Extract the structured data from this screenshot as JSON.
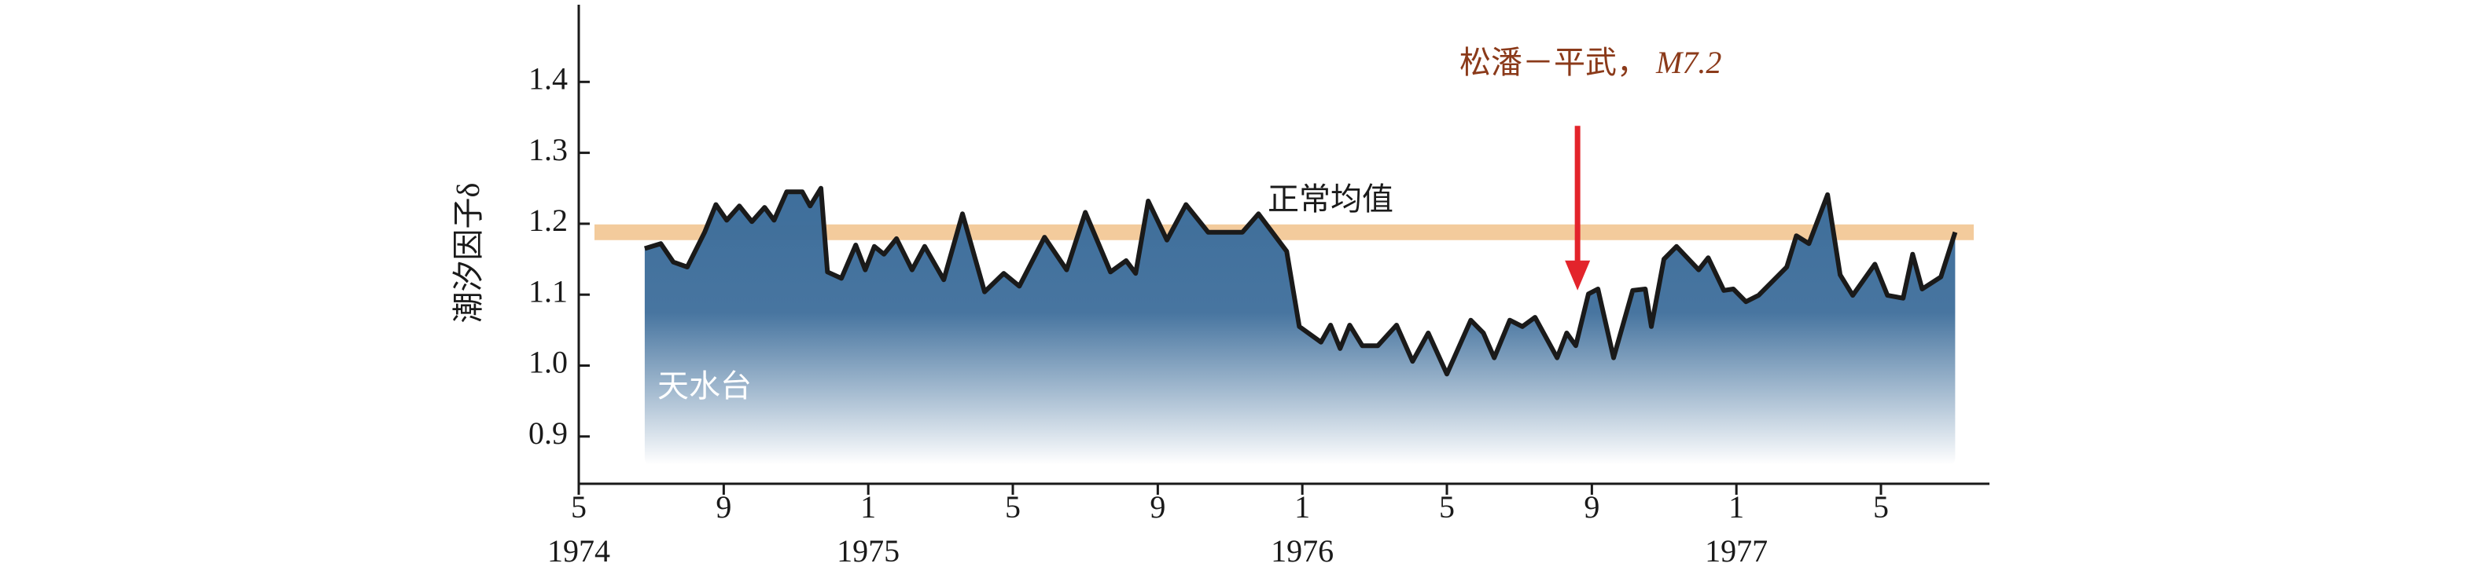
{
  "chart_data": {
    "type": "area",
    "y_label": "潮汐因子δ",
    "xlim": [
      1974.333,
      1977.583
    ],
    "ylim": [
      0.83,
      1.5
    ],
    "yticks": [
      0.9,
      1.0,
      1.1,
      1.2,
      1.3,
      1.4
    ],
    "xticks": [
      {
        "value": 1974.333,
        "label": "5"
      },
      {
        "value": 1974.667,
        "label": "9"
      },
      {
        "value": 1975.0,
        "label": "1"
      },
      {
        "value": 1975.333,
        "label": "5"
      },
      {
        "value": 1975.667,
        "label": "9"
      },
      {
        "value": 1976.0,
        "label": "1"
      },
      {
        "value": 1976.333,
        "label": "5"
      },
      {
        "value": 1976.667,
        "label": "9"
      },
      {
        "value": 1977.0,
        "label": "1"
      },
      {
        "value": 1977.333,
        "label": "5"
      }
    ],
    "year_ticks": [
      {
        "value": 1974.333,
        "label": "1974"
      },
      1975,
      1976,
      1977
    ],
    "mean_line": {
      "label": "正常均值",
      "value": 1.188,
      "color": "#f3cb9c"
    },
    "annotation": {
      "text": "松潘－平武，",
      "magnitude": "M7.2",
      "x": 1976.634,
      "y_from": 1.338,
      "y_to": 1.106,
      "color": "#e3242b",
      "text_color": "#8b3a1a"
    },
    "series": [
      {
        "name": "天水台",
        "color": "#1a1a1a",
        "fill_color": "#3e6e9b",
        "x": [
          1974.485,
          1974.522,
          1974.551,
          1974.583,
          1974.623,
          1974.649,
          1974.674,
          1974.703,
          1974.732,
          1974.761,
          1974.783,
          1974.812,
          1974.848,
          1974.866,
          1974.891,
          1974.906,
          1974.938,
          1974.971,
          1974.993,
          1975.014,
          1975.036,
          1975.065,
          1975.101,
          1975.13,
          1975.174,
          1975.217,
          1975.268,
          1975.312,
          1975.348,
          1975.406,
          1975.457,
          1975.5,
          1975.558,
          1975.594,
          1975.616,
          1975.645,
          1975.688,
          1975.732,
          1975.783,
          1975.862,
          1975.899,
          1975.964,
          1975.993,
          1976.043,
          1976.065,
          1976.087,
          1976.109,
          1976.138,
          1976.174,
          1976.217,
          1976.254,
          1976.29,
          1976.333,
          1976.388,
          1976.417,
          1976.442,
          1976.478,
          1976.507,
          1976.536,
          1976.587,
          1976.609,
          1976.63,
          1976.659,
          1976.681,
          1976.717,
          1976.761,
          1976.79,
          1976.804,
          1976.833,
          1976.862,
          1976.913,
          1976.935,
          1976.971,
          1976.993,
          1977.022,
          1977.051,
          1977.116,
          1977.138,
          1977.167,
          1977.21,
          1977.239,
          1977.268,
          1977.319,
          1977.348,
          1977.384,
          1977.406,
          1977.428,
          1977.471,
          1977.504
        ],
        "values": [
          1.165,
          1.172,
          1.146,
          1.139,
          1.188,
          1.227,
          1.205,
          1.225,
          1.203,
          1.223,
          1.205,
          1.245,
          1.245,
          1.225,
          1.25,
          1.132,
          1.123,
          1.17,
          1.135,
          1.168,
          1.157,
          1.179,
          1.135,
          1.168,
          1.121,
          1.214,
          1.104,
          1.13,
          1.112,
          1.181,
          1.135,
          1.216,
          1.132,
          1.148,
          1.13,
          1.232,
          1.177,
          1.227,
          1.188,
          1.188,
          1.214,
          1.161,
          1.055,
          1.033,
          1.057,
          1.024,
          1.057,
          1.028,
          1.028,
          1.057,
          1.006,
          1.046,
          0.988,
          1.064,
          1.046,
          1.011,
          1.064,
          1.055,
          1.068,
          1.011,
          1.046,
          1.028,
          1.101,
          1.108,
          1.011,
          1.106,
          1.108,
          1.055,
          1.15,
          1.168,
          1.135,
          1.152,
          1.106,
          1.108,
          1.09,
          1.099,
          1.139,
          1.183,
          1.172,
          1.241,
          1.128,
          1.099,
          1.143,
          1.099,
          1.095,
          1.157,
          1.108,
          1.125,
          1.188
        ]
      }
    ]
  }
}
